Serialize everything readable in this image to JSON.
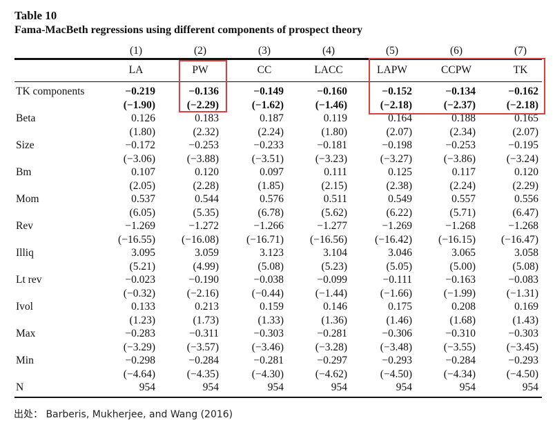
{
  "table": {
    "number": "Table 10",
    "caption": "Fama-MacBeth regressions using different components of prospect theory",
    "column_numbers": [
      "(1)",
      "(2)",
      "(3)",
      "(4)",
      "(5)",
      "(6)",
      "(7)"
    ],
    "column_names": [
      "LA",
      "PW",
      "CC",
      "LACC",
      "LAPW",
      "CCPW",
      "TK"
    ],
    "rows": [
      {
        "label": "TK components",
        "bold": true,
        "coef": [
          "−0.219",
          "−0.136",
          "−0.149",
          "−0.160",
          "−0.152",
          "−0.134",
          "−0.162"
        ],
        "tstat": [
          "(−1.90)",
          "(−2.29)",
          "(−1.62)",
          "(−1.46)",
          "(−2.18)",
          "(−2.37)",
          "(−2.18)"
        ]
      },
      {
        "label": "Beta",
        "bold": false,
        "coef": [
          "0.126",
          "0.183",
          "0.187",
          "0.119",
          "0.164",
          "0.188",
          "0.165"
        ],
        "tstat": [
          "(1.80)",
          "(2.32)",
          "(2.24)",
          "(1.80)",
          "(2.07)",
          "(2.34)",
          "(2.07)"
        ]
      },
      {
        "label": "Size",
        "bold": false,
        "coef": [
          "−0.172",
          "−0.253",
          "−0.233",
          "−0.181",
          "−0.198",
          "−0.253",
          "−0.195"
        ],
        "tstat": [
          "(−3.06)",
          "(−3.88)",
          "(−3.51)",
          "(−3.23)",
          "(−3.27)",
          "(−3.86)",
          "(−3.24)"
        ]
      },
      {
        "label": "Bm",
        "bold": false,
        "coef": [
          "0.107",
          "0.120",
          "0.097",
          "0.111",
          "0.125",
          "0.117",
          "0.120"
        ],
        "tstat": [
          "(2.05)",
          "(2.28)",
          "(1.85)",
          "(2.15)",
          "(2.38)",
          "(2.24)",
          "(2.29)"
        ]
      },
      {
        "label": "Mom",
        "bold": false,
        "coef": [
          "0.537",
          "0.544",
          "0.576",
          "0.511",
          "0.549",
          "0.557",
          "0.556"
        ],
        "tstat": [
          "(6.05)",
          "(5.35)",
          "(6.78)",
          "(5.62)",
          "(6.22)",
          "(5.71)",
          "(6.47)"
        ]
      },
      {
        "label": "Rev",
        "bold": false,
        "coef": [
          "−1.269",
          "−1.272",
          "−1.266",
          "−1.277",
          "−1.269",
          "−1.268",
          "−1.268"
        ],
        "tstat": [
          "(−16.55)",
          "(−16.08)",
          "(−16.71)",
          "(−16.56)",
          "(−16.42)",
          "(−16.15)",
          "(−16.47)"
        ]
      },
      {
        "label": "Illiq",
        "bold": false,
        "coef": [
          "3.095",
          "3.059",
          "3.123",
          "3.104",
          "3.046",
          "3.065",
          "3.058"
        ],
        "tstat": [
          "(5.21)",
          "(4.99)",
          "(5.08)",
          "(5.23)",
          "(5.05)",
          "(5.00)",
          "(5.08)"
        ]
      },
      {
        "label": "Lt rev",
        "bold": false,
        "coef": [
          "−0.023",
          "−0.190",
          "−0.038",
          "−0.099",
          "−0.111",
          "−0.163",
          "−0.083"
        ],
        "tstat": [
          "(−0.32)",
          "(−2.16)",
          "(−0.44)",
          "(−1.44)",
          "(−1.66)",
          "(−1.99)",
          "(−1.31)"
        ]
      },
      {
        "label": "Ivol",
        "bold": false,
        "coef": [
          "0.133",
          "0.213",
          "0.159",
          "0.146",
          "0.175",
          "0.208",
          "0.169"
        ],
        "tstat": [
          "(1.23)",
          "(1.73)",
          "(1.33)",
          "(1.36)",
          "(1.46)",
          "(1.68)",
          "(1.43)"
        ]
      },
      {
        "label": "Max",
        "bold": false,
        "coef": [
          "−0.283",
          "−0.311",
          "−0.303",
          "−0.281",
          "−0.306",
          "−0.310",
          "−0.303"
        ],
        "tstat": [
          "(−3.29)",
          "(−3.57)",
          "(−3.46)",
          "(−3.28)",
          "(−3.48)",
          "(−3.55)",
          "(−3.45)"
        ]
      },
      {
        "label": "Min",
        "bold": false,
        "coef": [
          "−0.298",
          "−0.284",
          "−0.281",
          "−0.297",
          "−0.293",
          "−0.284",
          "−0.293"
        ],
        "tstat": [
          "(−4.64)",
          "(−4.35)",
          "(−4.30)",
          "(−4.62)",
          "(−4.50)",
          "(−4.34)",
          "(−4.50)"
        ]
      }
    ],
    "n_row": {
      "label": "N",
      "values": [
        "954",
        "954",
        "954",
        "954",
        "954",
        "954",
        "954"
      ]
    },
    "highlight_color": "#e03c3c"
  },
  "source": "出处： Barberis, Mukherjee, and Wang (2016)"
}
